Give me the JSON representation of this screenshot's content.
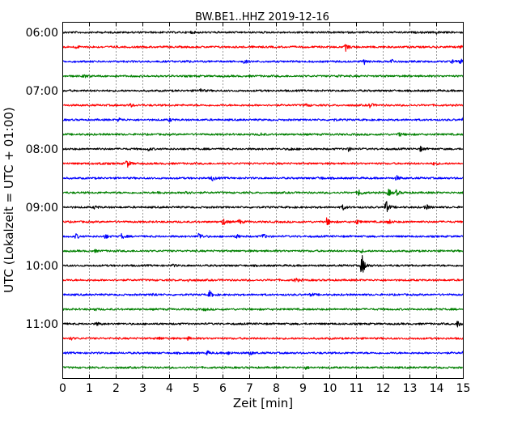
{
  "chart_data": {
    "type": "line",
    "title": "BW.BE1..HHZ 2019-12-16",
    "xlabel": "Zeit  [min]",
    "ylabel": "UTC (Lokalzeit = UTC + 01:00)",
    "xlim": [
      0,
      15
    ],
    "x_ticks": [
      "0",
      "1",
      "2",
      "3",
      "4",
      "5",
      "6",
      "7",
      "8",
      "9",
      "10",
      "11",
      "12",
      "13",
      "14",
      "15"
    ],
    "y_tick_labels": [
      "06:00",
      "07:00",
      "08:00",
      "09:00",
      "10:00",
      "11:00"
    ],
    "grid": "vertical dotted lines at each minute",
    "trace_interval_min": 15,
    "trace_colors": [
      "#000000",
      "#ff0000",
      "#0000ff",
      "#008000"
    ],
    "series": [
      {
        "start": "06:00",
        "color": "#000000",
        "events": [
          {
            "t": 4.8,
            "amp": 0.2
          },
          {
            "t": 14.0,
            "amp": 0.25
          }
        ]
      },
      {
        "start": "06:15",
        "color": "#ff0000",
        "events": [
          {
            "t": 0.5,
            "amp": 0.25
          },
          {
            "t": 10.6,
            "amp": 0.7
          },
          {
            "t": 14.9,
            "amp": 0.25
          }
        ]
      },
      {
        "start": "06:30",
        "color": "#0000ff",
        "events": [
          {
            "t": 4.6,
            "amp": 0.3
          },
          {
            "t": 6.8,
            "amp": 0.4
          },
          {
            "t": 11.3,
            "amp": 0.5
          },
          {
            "t": 12.3,
            "amp": 0.5
          },
          {
            "t": 14.6,
            "amp": 0.3
          },
          {
            "t": 14.9,
            "amp": 0.45
          }
        ]
      },
      {
        "start": "06:45",
        "color": "#008000",
        "events": [
          {
            "t": 0.8,
            "amp": 0.3
          },
          {
            "t": 10.3,
            "amp": 0.25
          }
        ]
      },
      {
        "start": "07:00",
        "color": "#000000",
        "events": [
          {
            "t": 5.1,
            "amp": 0.6
          }
        ]
      },
      {
        "start": "07:15",
        "color": "#ff0000",
        "events": [
          {
            "t": 2.5,
            "amp": 0.4
          },
          {
            "t": 9.1,
            "amp": 0.3
          },
          {
            "t": 11.5,
            "amp": 0.5
          }
        ]
      },
      {
        "start": "07:30",
        "color": "#0000ff",
        "events": [
          {
            "t": 2.1,
            "amp": 0.4
          },
          {
            "t": 4.0,
            "amp": 0.3
          },
          {
            "t": 10.1,
            "amp": 0.3
          },
          {
            "t": 15.0,
            "amp": 0.6
          }
        ]
      },
      {
        "start": "07:45",
        "color": "#008000",
        "events": [
          {
            "t": 7.4,
            "amp": 0.3
          },
          {
            "t": 12.6,
            "amp": 0.4
          }
        ]
      },
      {
        "start": "08:00",
        "color": "#000000",
        "events": [
          {
            "t": 3.2,
            "amp": 0.3
          },
          {
            "t": 8.5,
            "amp": 0.3
          },
          {
            "t": 10.7,
            "amp": 0.35
          },
          {
            "t": 13.4,
            "amp": 0.45
          }
        ]
      },
      {
        "start": "08:15",
        "color": "#ff0000",
        "events": [
          {
            "t": 1.4,
            "amp": 0.25
          },
          {
            "t": 2.4,
            "amp": 0.9
          },
          {
            "t": 13.9,
            "amp": 0.25
          }
        ]
      },
      {
        "start": "08:30",
        "color": "#0000ff",
        "events": [
          {
            "t": 5.6,
            "amp": 0.5
          },
          {
            "t": 9.6,
            "amp": 0.35
          },
          {
            "t": 12.5,
            "amp": 0.45
          }
        ]
      },
      {
        "start": "08:45",
        "color": "#008000",
        "events": [
          {
            "t": 3.6,
            "amp": 0.3
          },
          {
            "t": 4.6,
            "amp": 0.7
          },
          {
            "t": 11.1,
            "amp": 0.8
          },
          {
            "t": 12.2,
            "amp": 0.7
          },
          {
            "t": 12.5,
            "amp": 0.5
          }
        ]
      },
      {
        "start": "09:00",
        "color": "#000000",
        "events": [
          {
            "t": 1.2,
            "amp": 0.3
          },
          {
            "t": 10.5,
            "amp": 0.5
          },
          {
            "t": 12.1,
            "amp": 1.5
          },
          {
            "t": 13.6,
            "amp": 0.6
          }
        ]
      },
      {
        "start": "09:15",
        "color": "#ff0000",
        "events": [
          {
            "t": 6.0,
            "amp": 0.7
          },
          {
            "t": 6.6,
            "amp": 0.5
          },
          {
            "t": 9.9,
            "amp": 0.8
          },
          {
            "t": 11.0,
            "amp": 0.5
          },
          {
            "t": 12.2,
            "amp": 0.5
          }
        ]
      },
      {
        "start": "09:30",
        "color": "#0000ff",
        "events": [
          {
            "t": 0.5,
            "amp": 0.45
          },
          {
            "t": 1.6,
            "amp": 0.4
          },
          {
            "t": 2.2,
            "amp": 0.5
          },
          {
            "t": 5.1,
            "amp": 0.8
          },
          {
            "t": 6.5,
            "amp": 0.45
          },
          {
            "t": 7.5,
            "amp": 0.5
          }
        ]
      },
      {
        "start": "09:45",
        "color": "#008000",
        "events": [
          {
            "t": 1.2,
            "amp": 0.2
          },
          {
            "t": 11.2,
            "amp": 0.25
          }
        ]
      },
      {
        "start": "10:00",
        "color": "#000000",
        "events": [
          {
            "t": 4.1,
            "amp": 0.25
          },
          {
            "t": 11.2,
            "amp": 2.4
          }
        ]
      },
      {
        "start": "10:15",
        "color": "#ff0000",
        "events": [
          {
            "t": 4.7,
            "amp": 0.25
          },
          {
            "t": 8.7,
            "amp": 0.5
          }
        ]
      },
      {
        "start": "10:30",
        "color": "#0000ff",
        "events": [
          {
            "t": 3.4,
            "amp": 0.3
          },
          {
            "t": 5.5,
            "amp": 0.7
          },
          {
            "t": 9.3,
            "amp": 0.3
          }
        ]
      },
      {
        "start": "10:45",
        "color": "#008000",
        "events": [
          {
            "t": 1.2,
            "amp": 0.2
          },
          {
            "t": 5.3,
            "amp": 0.25
          }
        ]
      },
      {
        "start": "11:00",
        "color": "#000000",
        "events": [
          {
            "t": 1.3,
            "amp": 0.3
          },
          {
            "t": 14.8,
            "amp": 0.8
          }
        ]
      },
      {
        "start": "11:15",
        "color": "#ff0000",
        "events": [
          {
            "t": 0.3,
            "amp": 0.25
          },
          {
            "t": 3.6,
            "amp": 0.3
          },
          {
            "t": 4.7,
            "amp": 0.25
          }
        ]
      },
      {
        "start": "11:30",
        "color": "#0000ff",
        "events": [
          {
            "t": 5.4,
            "amp": 0.4
          },
          {
            "t": 6.2,
            "amp": 0.3
          },
          {
            "t": 7.0,
            "amp": 0.4
          },
          {
            "t": 15.0,
            "amp": 0.4
          }
        ]
      },
      {
        "start": "11:45",
        "color": "#008000",
        "events": [
          {
            "t": 9.1,
            "amp": 0.25
          }
        ]
      }
    ]
  }
}
